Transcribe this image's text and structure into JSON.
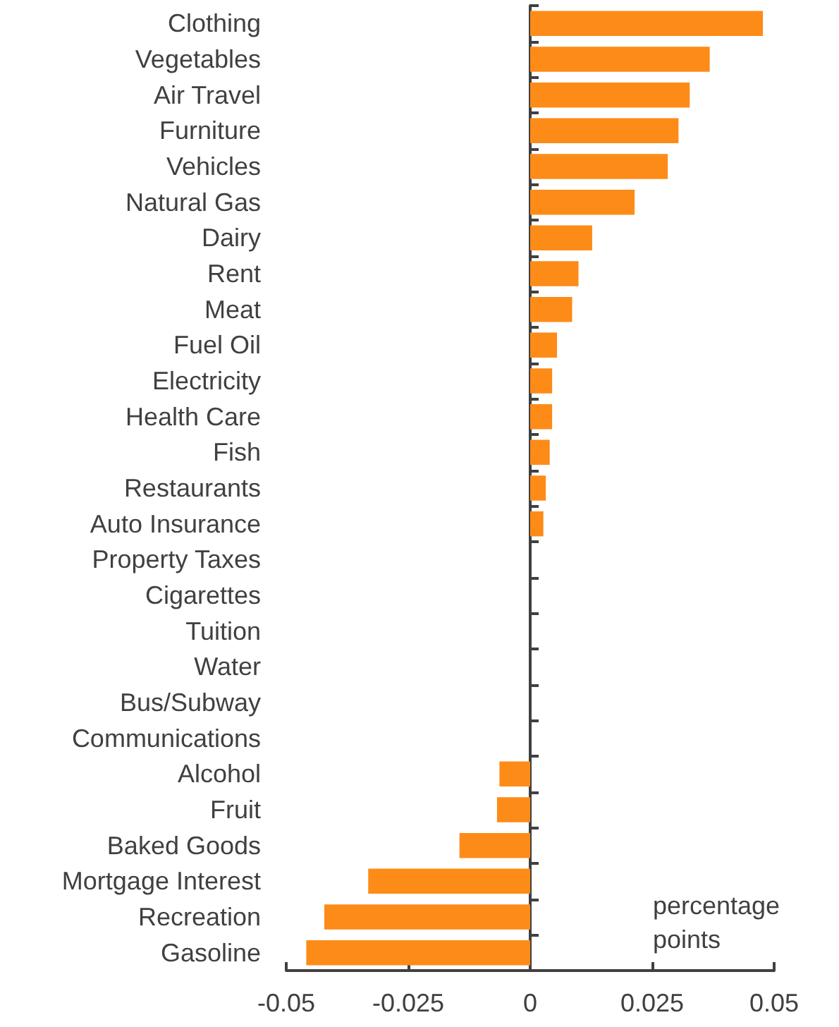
{
  "chart_data": {
    "type": "bar",
    "orientation": "horizontal",
    "categories": [
      "Clothing",
      "Vegetables",
      "Air Travel",
      "Furniture",
      "Vehicles",
      "Natural Gas",
      "Dairy",
      "Rent",
      "Meat",
      "Fuel Oil",
      "Electricity",
      "Health Care",
      "Fish",
      "Restaurants",
      "Auto Insurance",
      "Property Taxes",
      "Cigarettes",
      "Tuition",
      "Water",
      "Bus/Subway",
      "Communications",
      "Alcohol",
      "Fruit",
      "Baked Goods",
      "Mortgage Interest",
      "Recreation",
      "Gasoline"
    ],
    "values": [
      0.0477,
      0.0368,
      0.0327,
      0.0304,
      0.0282,
      0.0214,
      0.0127,
      0.0099,
      0.0086,
      0.0055,
      0.0045,
      0.0045,
      0.004,
      0.0032,
      0.0027,
      0,
      0,
      0,
      0,
      0,
      0,
      -0.0063,
      -0.0068,
      -0.0145,
      -0.0332,
      -0.0422,
      -0.0459
    ],
    "color": "#fd8b18",
    "xlim": [
      -0.05,
      0.05
    ],
    "xticks": [
      -0.05,
      -0.025,
      0,
      0.025,
      0.05
    ],
    "annotations": [
      "percentage points"
    ]
  }
}
